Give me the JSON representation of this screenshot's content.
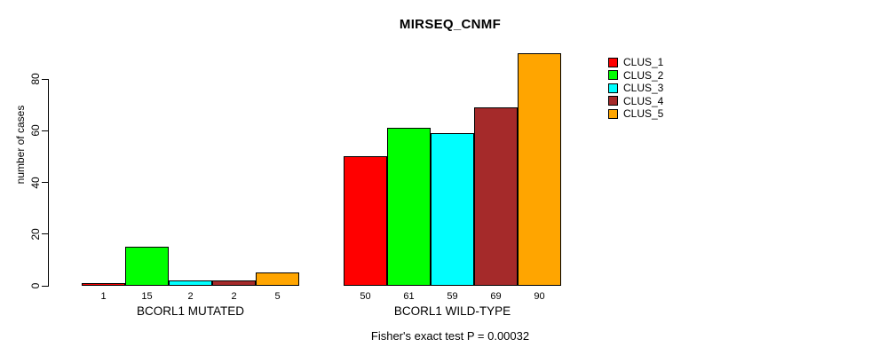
{
  "chart_data": {
    "type": "bar",
    "title": "MIRSEQ_CNMF",
    "ylabel": "number of cases",
    "xlabel": "",
    "ylim": [
      0,
      90
    ],
    "y_ticks": [
      0,
      20,
      40,
      60,
      80
    ],
    "grid": false,
    "legend_position": "right",
    "bar_value_labels_shown": true,
    "annotation": "Fisher's exact test P = 0.00032",
    "categories": [
      "BCORL1 MUTATED",
      "BCORL1 WILD-TYPE"
    ],
    "series": [
      {
        "name": "CLUS_1",
        "color": "#FF0000",
        "values": [
          1,
          50
        ]
      },
      {
        "name": "CLUS_2",
        "color": "#00FF00",
        "values": [
          15,
          61
        ]
      },
      {
        "name": "CLUS_3",
        "color": "#00FFFF",
        "values": [
          2,
          59
        ]
      },
      {
        "name": "CLUS_4",
        "color": "#A52A2A",
        "values": [
          2,
          69
        ]
      },
      {
        "name": "CLUS_5",
        "color": "#FFA500",
        "values": [
          5,
          90
        ]
      }
    ]
  }
}
